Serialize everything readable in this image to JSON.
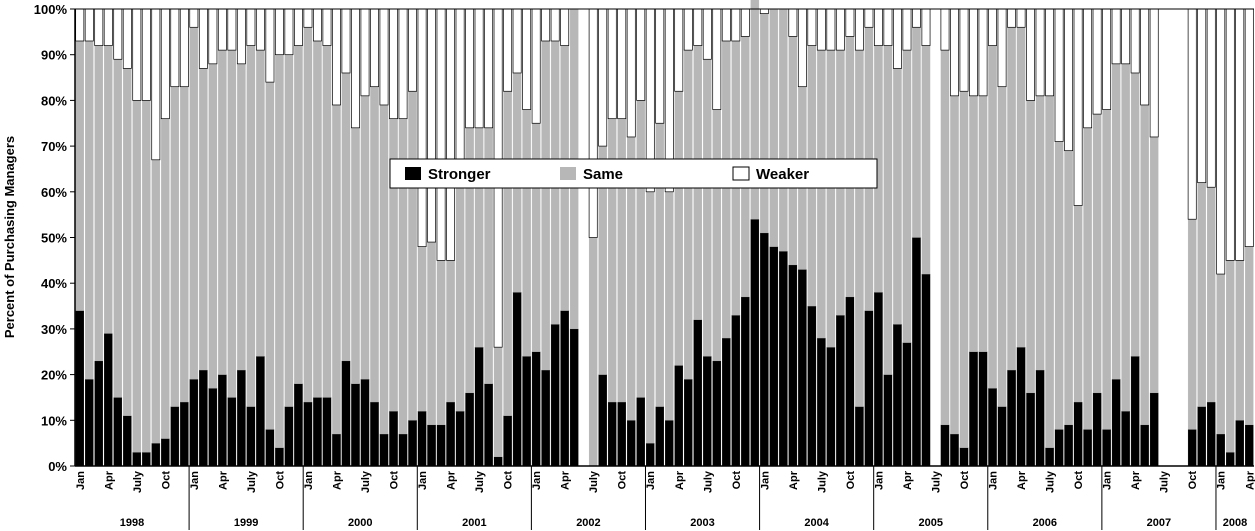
{
  "chart_data": {
    "type": "bar",
    "stacked": true,
    "ylabel": "Percent of Purchasing Managers",
    "xlabel": "",
    "ylim": [
      0,
      100
    ],
    "y_tick_labels": [
      "0%",
      "10%",
      "20%",
      "30%",
      "40%",
      "50%",
      "60%",
      "70%",
      "80%",
      "90%",
      "100%"
    ],
    "month_labels": [
      "Jan",
      "Apr",
      "July",
      "Oct"
    ],
    "years": [
      "1998",
      "1999",
      "2000",
      "2001",
      "2002",
      "2003",
      "2004",
      "2005",
      "2006",
      "2007",
      "2008"
    ],
    "legend": {
      "position": "center",
      "entries": [
        "Stronger",
        "Same",
        "Weaker"
      ]
    },
    "colors": {
      "Stronger": "#000000",
      "Same": "#b7b7b7",
      "Weaker": "#ffffff"
    },
    "start": "1998-01",
    "series": [
      {
        "name": "Stronger",
        "values": [
          34,
          19,
          23,
          29,
          15,
          11,
          3,
          3,
          5,
          6,
          13,
          14,
          19,
          21,
          17,
          20,
          15,
          21,
          13,
          24,
          8,
          4,
          13,
          18,
          14,
          15,
          15,
          7,
          23,
          18,
          19,
          14,
          7,
          12,
          7,
          10,
          12,
          9,
          9,
          14,
          12,
          16,
          26,
          18,
          2,
          11,
          38,
          24,
          25,
          21,
          31,
          34,
          30,
          null,
          0,
          20,
          14,
          14,
          10,
          15,
          5,
          13,
          10,
          22,
          19,
          32,
          24,
          23,
          28,
          33,
          37,
          54,
          51,
          48,
          47,
          44,
          43,
          35,
          28,
          26,
          33,
          37,
          13,
          34,
          38,
          20,
          31,
          27,
          50,
          42,
          null,
          9,
          7,
          4,
          25,
          25,
          17,
          13,
          21,
          26,
          16,
          21,
          4,
          8,
          9,
          14,
          8,
          16,
          8,
          19,
          12,
          24,
          9,
          16,
          null,
          null,
          null,
          8,
          13,
          14,
          7,
          3,
          10,
          9
        ]
      },
      {
        "name": "Same",
        "values": [
          59,
          74,
          69,
          63,
          74,
          76,
          77,
          77,
          62,
          70,
          70,
          69,
          77,
          66,
          71,
          71,
          76,
          67,
          79,
          67,
          76,
          86,
          77,
          74,
          82,
          78,
          77,
          72,
          63,
          56,
          62,
          69,
          72,
          64,
          69,
          72,
          36,
          40,
          36,
          31,
          52,
          58,
          48,
          56,
          24,
          71,
          48,
          54,
          50,
          72,
          62,
          58,
          70,
          null,
          50,
          50,
          62,
          62,
          62,
          65,
          55,
          62,
          50,
          60,
          72,
          60,
          65,
          55,
          65,
          60,
          57,
          50,
          48,
          52,
          53,
          50,
          40,
          57,
          63,
          65,
          58,
          57,
          78,
          62,
          54,
          72,
          56,
          64,
          46,
          50,
          null,
          82,
          74,
          78,
          56,
          56,
          75,
          70,
          75,
          70,
          64,
          60,
          77,
          63,
          60,
          43,
          66,
          61,
          70,
          69,
          76,
          62,
          70,
          56,
          null,
          null,
          null,
          46,
          49,
          47,
          35,
          42,
          35,
          39
        ]
      },
      {
        "name": "Weaker",
        "values": [
          7,
          7,
          8,
          8,
          11,
          13,
          20,
          20,
          33,
          24,
          17,
          17,
          4,
          13,
          12,
          9,
          9,
          12,
          8,
          9,
          16,
          10,
          10,
          8,
          4,
          7,
          8,
          21,
          14,
          26,
          19,
          17,
          21,
          24,
          24,
          18,
          52,
          51,
          55,
          55,
          36,
          26,
          26,
          26,
          74,
          18,
          14,
          22,
          25,
          7,
          7,
          8,
          0,
          null,
          50,
          30,
          24,
          24,
          28,
          20,
          40,
          25,
          40,
          18,
          9,
          8,
          11,
          22,
          7,
          7,
          6,
          0,
          1,
          0,
          0,
          6,
          17,
          8,
          9,
          9,
          9,
          6,
          9,
          4,
          8,
          8,
          13,
          9,
          4,
          8,
          null,
          9,
          19,
          18,
          19,
          19,
          8,
          17,
          4,
          4,
          20,
          19,
          19,
          29,
          31,
          43,
          26,
          23,
          22,
          12,
          12,
          14,
          21,
          28,
          null,
          null,
          null,
          46,
          38,
          39,
          58,
          55,
          55,
          52
        ]
      }
    ]
  }
}
